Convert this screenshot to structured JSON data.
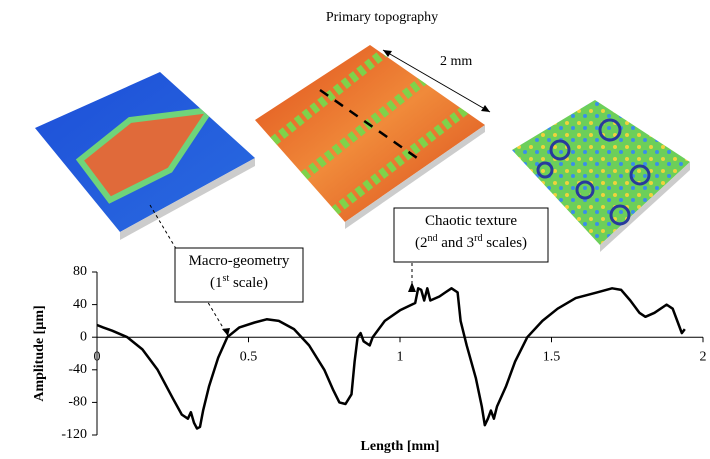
{
  "chart_data": {
    "type": "line",
    "heading": "Primary topography",
    "scale_label": "2 mm",
    "annotations": [
      {
        "lines": [
          [
            "Macro-geometry"
          ],
          [
            "(1",
            "st",
            " scale)"
          ]
        ]
      },
      {
        "lines": [
          [
            "Chaotic texture"
          ],
          [
            "(2",
            "nd",
            " and 3",
            "rd",
            " scales)"
          ]
        ]
      }
    ],
    "x_label": "Length [mm]",
    "y_label": "Amplitude [µm]",
    "color": "#000000",
    "x": [
      0,
      0.02,
      0.05,
      0.1,
      0.15,
      0.2,
      0.25,
      0.28,
      0.3,
      0.31,
      0.32,
      0.33,
      0.34,
      0.35,
      0.37,
      0.4,
      0.43,
      0.47,
      0.52,
      0.56,
      0.6,
      0.65,
      0.7,
      0.75,
      0.78,
      0.8,
      0.82,
      0.84,
      0.85,
      0.86,
      0.87,
      0.88,
      0.9,
      0.91,
      0.95,
      1.0,
      1.05,
      1.06,
      1.07,
      1.08,
      1.09,
      1.1,
      1.13,
      1.15,
      1.17,
      1.19,
      1.2,
      1.22,
      1.25,
      1.27,
      1.28,
      1.29,
      1.3,
      1.31,
      1.32,
      1.35,
      1.38,
      1.42,
      1.47,
      1.52,
      1.58,
      1.65,
      1.7,
      1.73,
      1.76,
      1.79,
      1.81,
      1.84,
      1.88,
      1.9,
      1.92,
      1.93,
      1.94
    ],
    "values": [
      15,
      12,
      8,
      0,
      -15,
      -40,
      -75,
      -95,
      -100,
      -92,
      -105,
      -112,
      -110,
      -90,
      -60,
      -25,
      0,
      12,
      18,
      22,
      20,
      10,
      -10,
      -40,
      -65,
      -80,
      -82,
      -70,
      -30,
      0,
      5,
      -5,
      -10,
      0,
      20,
      33,
      42,
      60,
      58,
      45,
      60,
      45,
      50,
      55,
      60,
      55,
      20,
      -10,
      -50,
      -85,
      -108,
      -100,
      -90,
      -100,
      -85,
      -60,
      -30,
      0,
      20,
      35,
      48,
      55,
      60,
      58,
      45,
      30,
      25,
      30,
      40,
      35,
      15,
      5,
      10
    ],
    "xlim": [
      0,
      2
    ],
    "ylim": [
      -120,
      80
    ],
    "xticks": [
      0,
      0.5,
      1,
      1.5,
      2
    ],
    "yticks": [
      -120,
      -80,
      -40,
      0,
      40,
      80
    ]
  }
}
